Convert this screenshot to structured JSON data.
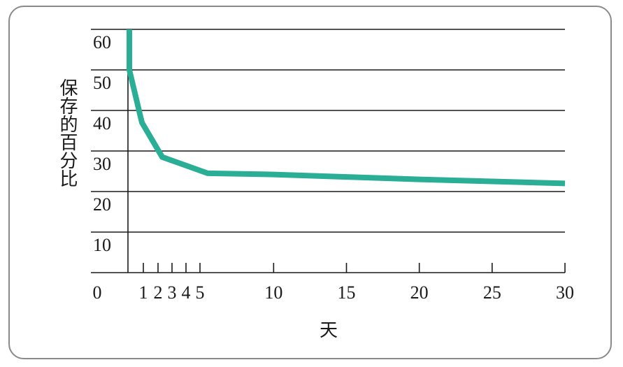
{
  "chart_data": {
    "type": "line",
    "title": "",
    "xlabel": "天",
    "ylabel": "保存的百分比",
    "xlim": [
      0,
      30
    ],
    "ylim": [
      0,
      60
    ],
    "x_ticks": [
      {
        "value": 0,
        "label": "0"
      },
      {
        "value": 1,
        "label": "1"
      },
      {
        "value": 2,
        "label": "2"
      },
      {
        "value": 3,
        "label": "3"
      },
      {
        "value": 4,
        "label": "4"
      },
      {
        "value": 5,
        "label": "5"
      },
      {
        "value": 10,
        "label": "10"
      },
      {
        "value": 15,
        "label": "15"
      },
      {
        "value": 20,
        "label": "20"
      },
      {
        "value": 25,
        "label": "25"
      },
      {
        "value": 30,
        "label": "30"
      }
    ],
    "y_ticks": [
      {
        "value": 10,
        "label": "10"
      },
      {
        "value": 20,
        "label": "20"
      },
      {
        "value": 30,
        "label": "30"
      },
      {
        "value": 40,
        "label": "40"
      },
      {
        "value": 50,
        "label": "50"
      },
      {
        "value": 60,
        "label": "60"
      }
    ],
    "grid": true,
    "series": [
      {
        "color": "#2aaf96",
        "points": [
          {
            "x": 0,
            "y": 60
          },
          {
            "x": 0,
            "y": 50
          },
          {
            "x": 1,
            "y": 37
          },
          {
            "x": 2.5,
            "y": 28.5
          },
          {
            "x": 5.5,
            "y": 24.5
          },
          {
            "x": 10,
            "y": 24.2
          },
          {
            "x": 15,
            "y": 23.6
          },
          {
            "x": 20,
            "y": 23
          },
          {
            "x": 25,
            "y": 22.5
          },
          {
            "x": 30,
            "y": 22
          }
        ]
      }
    ]
  }
}
